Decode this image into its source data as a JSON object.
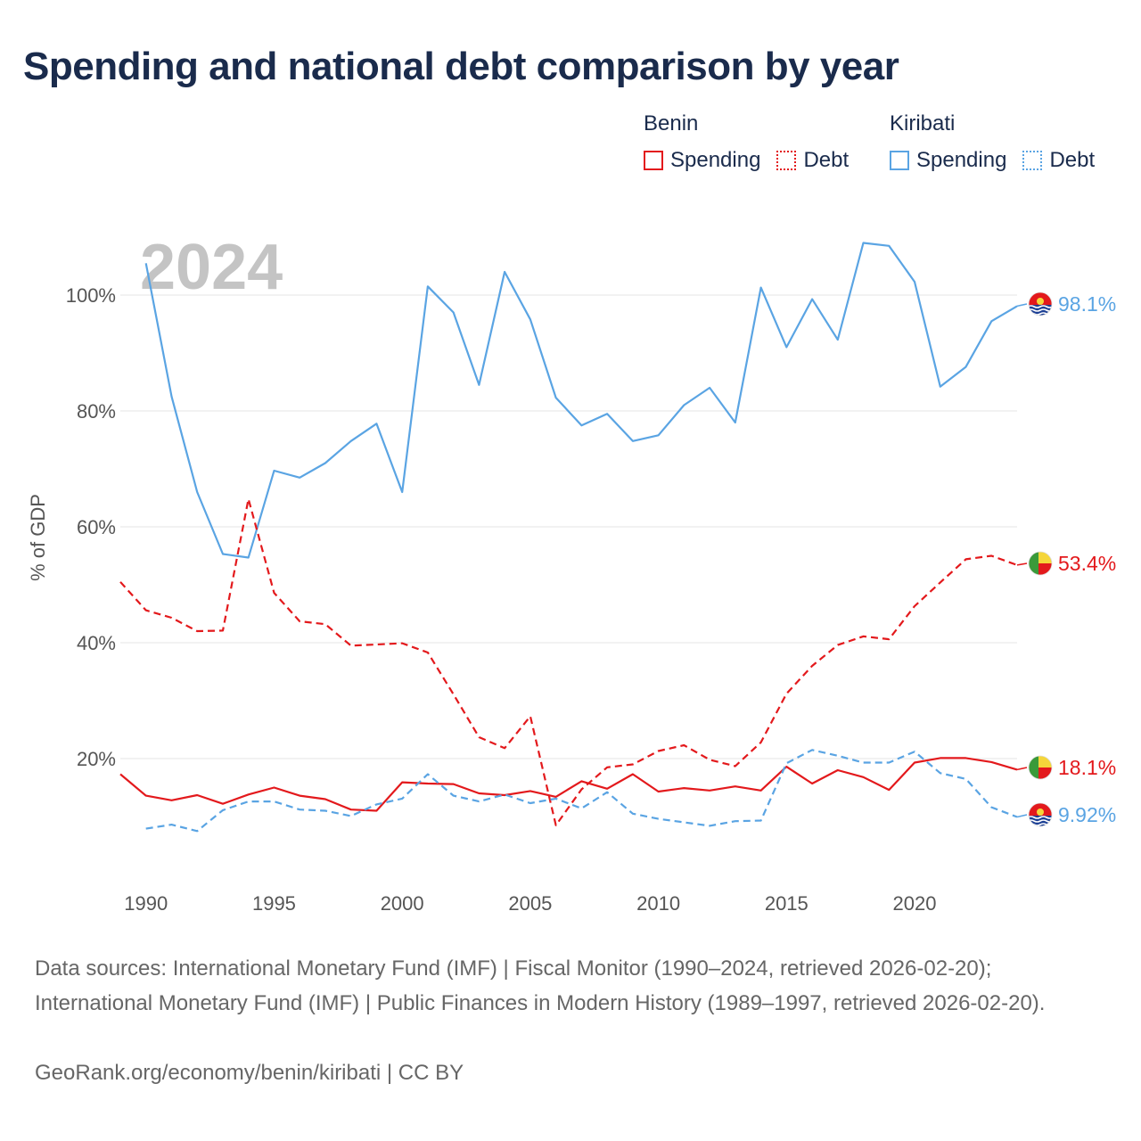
{
  "title": "Spending and national debt comparison by year",
  "legend": {
    "benin": {
      "country": "Benin",
      "spending": "Spending",
      "debt": "Debt"
    },
    "kiribati": {
      "country": "Kiribati",
      "spending": "Spending",
      "debt": "Debt"
    }
  },
  "colors": {
    "benin": "#e3191c",
    "kiribati": "#5aa4e3",
    "grid": "#e6e6e6",
    "axis_text": "#555555",
    "year_watermark": "#c4c4c4"
  },
  "sources": "Data sources: International Monetary Fund (IMF) | Fiscal Monitor (1990–2024, retrieved 2026-02-20); International Monetary Fund (IMF) | Public Finances in Modern History (1989–1997, retrieved 2026-02-20).",
  "credit": "GeoRank.org/economy/benin/kiribati | CC BY",
  "chart_data": {
    "type": "line",
    "title": "Spending and national debt comparison by year",
    "year_label": "2024",
    "ylabel": "% of GDP",
    "xlabel": "",
    "xlim": [
      1989,
      2024
    ],
    "ylim": [
      0,
      112
    ],
    "y_ticks": [
      20,
      40,
      60,
      80,
      100
    ],
    "y_tick_labels": [
      "20%",
      "40%",
      "60%",
      "80%",
      "100%"
    ],
    "x_ticks": [
      1990,
      1995,
      2000,
      2005,
      2010,
      2015,
      2020
    ],
    "x_tick_labels": [
      "1990",
      "1995",
      "2000",
      "2005",
      "2010",
      "2015",
      "2020"
    ],
    "grid": true,
    "legend_position": "top-right",
    "series": [
      {
        "name": "Kiribati Spending",
        "country": "Kiribati",
        "style": "solid",
        "end_label": "98.1%",
        "end_flag": "kiribati-flag-icon",
        "x": [
          1990,
          1991,
          1992,
          1993,
          1994,
          1995,
          1996,
          1997,
          1998,
          1999,
          2000,
          2001,
          2002,
          2003,
          2004,
          2005,
          2006,
          2007,
          2008,
          2009,
          2010,
          2011,
          2012,
          2013,
          2014,
          2015,
          2016,
          2017,
          2018,
          2019,
          2020,
          2021,
          2022,
          2023,
          2024
        ],
        "values": [
          105.5,
          82.5,
          66,
          55.3,
          54.7,
          69.7,
          68.5,
          71,
          74.8,
          77.8,
          66,
          101.5,
          97,
          84.5,
          104,
          95.8,
          82.3,
          77.5,
          79.5,
          74.8,
          75.8,
          81,
          84,
          78,
          101.3,
          91,
          99.3,
          92.3,
          109,
          108.5,
          102.3,
          84.2,
          87.6,
          95.5,
          98.1
        ]
      },
      {
        "name": "Benin Debt",
        "country": "Benin",
        "style": "dashed",
        "end_label": "53.4%",
        "end_flag": "benin-flag-icon",
        "x": [
          1989,
          1990,
          1991,
          1992,
          1993,
          1994,
          1995,
          1996,
          1997,
          1998,
          1999,
          2000,
          2001,
          2002,
          2003,
          2004,
          2005,
          2006,
          2007,
          2008,
          2009,
          2010,
          2011,
          2012,
          2013,
          2014,
          2015,
          2016,
          2017,
          2018,
          2019,
          2020,
          2021,
          2022,
          2023,
          2024
        ],
        "values": [
          50.5,
          45.6,
          44.3,
          42,
          42.1,
          64.8,
          48.6,
          43.7,
          43.2,
          39.5,
          39.7,
          39.9,
          38.3,
          31.1,
          23.7,
          21.8,
          27.3,
          8.5,
          14.7,
          18.5,
          19,
          21.3,
          22.3,
          19.8,
          18.7,
          22.8,
          31.2,
          36,
          39.6,
          41.1,
          40.6,
          46.3,
          50.4,
          54.4,
          55,
          53.4
        ]
      },
      {
        "name": "Benin Spending",
        "country": "Benin",
        "style": "solid",
        "end_label": "18.1%",
        "end_flag": "benin-flag-icon",
        "x": [
          1989,
          1990,
          1991,
          1992,
          1993,
          1994,
          1995,
          1996,
          1997,
          1998,
          1999,
          2000,
          2001,
          2002,
          2003,
          2004,
          2005,
          2006,
          2007,
          2008,
          2009,
          2010,
          2011,
          2012,
          2013,
          2014,
          2015,
          2016,
          2017,
          2018,
          2019,
          2020,
          2021,
          2022,
          2023,
          2024
        ],
        "values": [
          17.3,
          13.6,
          12.8,
          13.7,
          12.2,
          13.8,
          15,
          13.6,
          13,
          11.2,
          11,
          15.9,
          15.7,
          15.6,
          14,
          13.7,
          14.4,
          13.4,
          16.1,
          14.8,
          17.3,
          14.3,
          14.9,
          14.5,
          15.2,
          14.5,
          18.6,
          15.7,
          18,
          16.8,
          14.6,
          19.3,
          20.1,
          20.1,
          19.4,
          18.1
        ]
      },
      {
        "name": "Kiribati Debt",
        "country": "Kiribati",
        "style": "dashed",
        "end_label": "9.92%",
        "end_flag": "kiribati-flag-icon",
        "x": [
          1990,
          1991,
          1992,
          1993,
          1994,
          1995,
          1996,
          1997,
          1998,
          1999,
          2000,
          2001,
          2002,
          2003,
          2004,
          2005,
          2006,
          2007,
          2008,
          2009,
          2010,
          2011,
          2012,
          2013,
          2014,
          2015,
          2016,
          2017,
          2018,
          2019,
          2020,
          2021,
          2022,
          2023,
          2024
        ],
        "values": [
          7.9,
          8.6,
          7.5,
          11.1,
          12.6,
          12.6,
          11.2,
          11,
          10.1,
          12.1,
          13.1,
          17.3,
          13.6,
          12.6,
          13.8,
          12.3,
          13.1,
          11.4,
          14.2,
          10.5,
          9.6,
          9,
          8.4,
          9.2,
          9.3,
          19.2,
          21.5,
          20.5,
          19.3,
          19.3,
          21.2,
          17.5,
          16.5,
          11.6,
          9.92
        ]
      }
    ]
  }
}
